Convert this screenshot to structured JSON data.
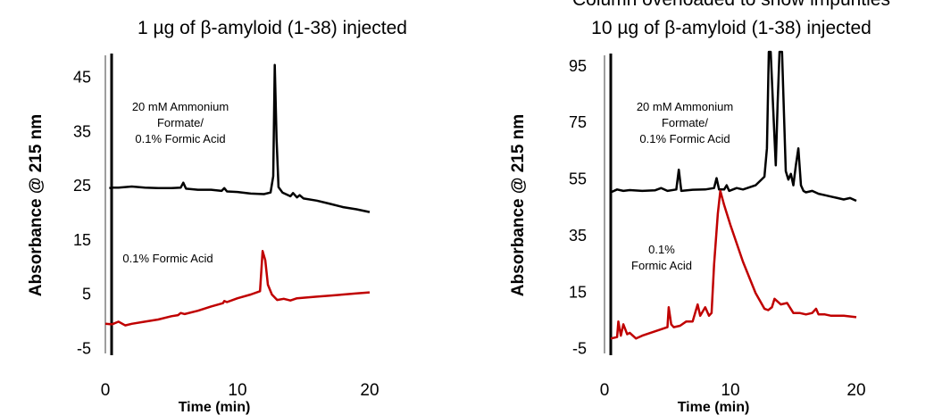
{
  "chart_data": [
    {
      "type": "line",
      "title": "1 µg of β-amyloid (1-38) injected",
      "xlabel": "Time (min)",
      "ylabel": "Absorbance @ 215 nm",
      "xlim": [
        0,
        20
      ],
      "ylim": [
        -5,
        50
      ],
      "xticks": [
        "0",
        "10",
        "20"
      ],
      "yticks": [
        "45",
        "35",
        "25",
        "15",
        "5",
        "-5"
      ],
      "grid": false,
      "annotations": [
        {
          "lines": [
            "20 mM Ammonium",
            "Formate/",
            "0.1% Formic Acid"
          ]
        },
        {
          "lines": [
            "0.1% Formic Acid"
          ]
        }
      ],
      "series": [
        {
          "color": "#000000",
          "x": [
            0.3,
            0.5,
            1.0,
            2.0,
            3.0,
            4.0,
            5.0,
            5.7,
            5.9,
            6.1,
            7.0,
            8.0,
            8.8,
            9.0,
            9.2,
            10.0,
            11.0,
            12.0,
            12.5,
            12.7,
            12.82,
            12.95,
            13.1,
            13.4,
            14.0,
            14.2,
            14.5,
            14.7,
            15.0,
            16.0,
            17.0,
            18.0,
            19.0,
            20.0
          ],
          "values": [
            24.8,
            24.9,
            24.9,
            25.1,
            24.9,
            24.8,
            24.8,
            24.9,
            25.8,
            24.7,
            24.5,
            24.5,
            24.3,
            24.8,
            24.2,
            24.1,
            23.8,
            23.7,
            24.0,
            27.0,
            47.5,
            34.0,
            25.0,
            24.0,
            23.3,
            23.9,
            23.1,
            23.5,
            22.9,
            22.5,
            21.9,
            21.3,
            20.9,
            20.4
          ]
        },
        {
          "color": "#c00000",
          "x": [
            0.0,
            0.5,
            1.0,
            1.5,
            2.0,
            3.0,
            4.0,
            5.0,
            5.5,
            5.7,
            6.0,
            7.0,
            8.0,
            8.9,
            9.0,
            9.2,
            10.0,
            11.0,
            11.7,
            11.9,
            12.1,
            12.3,
            12.6,
            13.0,
            13.5,
            14.0,
            14.5,
            15.0,
            16.0,
            17.0,
            18.0,
            19.0,
            20.0
          ],
          "values": [
            -0.2,
            -0.3,
            0.2,
            -0.5,
            -0.2,
            0.2,
            0.6,
            1.2,
            1.4,
            1.8,
            1.6,
            2.2,
            3.0,
            3.6,
            4.0,
            3.8,
            4.5,
            5.2,
            5.8,
            13.2,
            11.5,
            7.0,
            5.2,
            4.2,
            4.4,
            4.1,
            4.5,
            4.6,
            4.8,
            5.0,
            5.2,
            5.4,
            5.6
          ]
        }
      ]
    },
    {
      "type": "line",
      "title": "10 µg of β-amyloid (1-38) injected",
      "subtitle": "Column overloaded to show impurities",
      "xlabel": "Time (min)",
      "ylabel": "Absorbance @ 215 nm",
      "xlim": [
        0,
        20
      ],
      "ylim": [
        -5,
        100
      ],
      "xticks": [
        "0",
        "10",
        "20"
      ],
      "yticks": [
        "95",
        "75",
        "55",
        "35",
        "15",
        "-5"
      ],
      "grid": false,
      "annotations": [
        {
          "lines": [
            "20 mM Ammonium",
            "Formate/",
            "0.1% Formic Acid"
          ]
        },
        {
          "lines": [
            "0.1%",
            "Formic Acid"
          ]
        }
      ],
      "series": [
        {
          "color": "#000000",
          "x": [
            0.5,
            1.0,
            1.5,
            2.0,
            3.0,
            4.0,
            4.5,
            5.0,
            5.7,
            5.9,
            6.1,
            7.0,
            8.0,
            8.7,
            8.9,
            9.1,
            9.5,
            9.7,
            9.9,
            10.5,
            11.0,
            12.0,
            12.7,
            12.9,
            13.05,
            13.2,
            13.4,
            13.6,
            13.75,
            13.9,
            14.1,
            14.4,
            14.6,
            14.8,
            15.0,
            15.2,
            15.4,
            15.6,
            15.8,
            16.0,
            16.5,
            17.0,
            17.5,
            18.0,
            18.5,
            19.0,
            19.5,
            20.0
          ],
          "values": [
            50.5,
            51.5,
            51.0,
            51.3,
            51.0,
            51.2,
            52.0,
            51.0,
            51.5,
            58.5,
            51.0,
            51.4,
            51.5,
            52.0,
            55.5,
            51.5,
            51.5,
            53.0,
            51.0,
            52.0,
            51.5,
            53.0,
            56.0,
            66.0,
            100.0,
            100.0,
            80.0,
            60.0,
            82.0,
            100.0,
            100.0,
            58.0,
            55.0,
            57.0,
            53.0,
            60.0,
            66.0,
            53.0,
            51.0,
            50.5,
            51.0,
            50.0,
            49.5,
            49.0,
            48.5,
            48.0,
            48.5,
            47.5
          ]
        },
        {
          "color": "#c00000",
          "x": [
            0.5,
            1.0,
            1.1,
            1.3,
            1.5,
            1.8,
            2.0,
            2.5,
            3.0,
            4.0,
            5.0,
            5.1,
            5.3,
            5.5,
            6.0,
            6.5,
            7.0,
            7.4,
            7.6,
            8.0,
            8.3,
            8.5,
            8.7,
            9.0,
            9.2,
            9.5,
            10.0,
            11.0,
            12.0,
            12.7,
            13.0,
            13.3,
            13.5,
            14.0,
            14.5,
            15.0,
            15.5,
            16.0,
            16.5,
            16.8,
            17.0,
            17.5,
            18.0,
            19.0,
            20.0
          ],
          "values": [
            -1.0,
            -0.5,
            5.0,
            0.0,
            4.0,
            0.5,
            1.0,
            -1.0,
            0.0,
            1.5,
            3.0,
            10.0,
            4.0,
            3.0,
            3.5,
            5.0,
            5.0,
            11.0,
            7.0,
            10.0,
            7.0,
            8.0,
            25.0,
            43.0,
            51.0,
            46.0,
            39.0,
            26.0,
            15.0,
            9.5,
            9.0,
            10.0,
            13.0,
            11.0,
            11.5,
            8.0,
            8.0,
            7.5,
            8.0,
            9.5,
            7.5,
            7.5,
            7.0,
            7.0,
            6.5
          ]
        }
      ]
    }
  ]
}
